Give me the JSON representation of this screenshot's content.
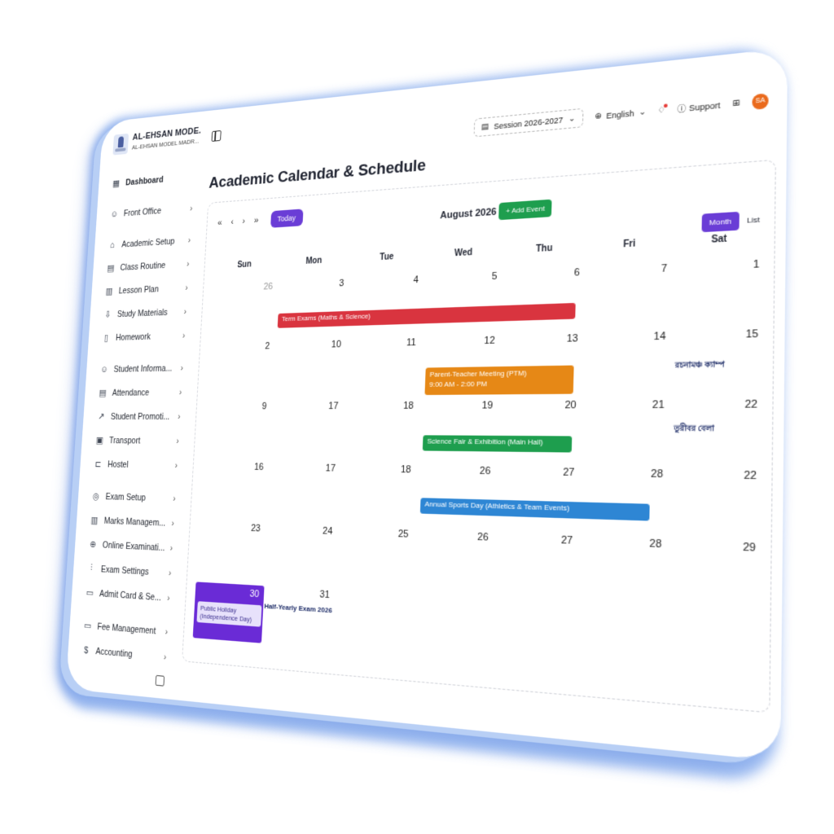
{
  "brand": {
    "name": "AL-EHSAN MODE...",
    "subtitle": "AL-EHSAN MODEL MADR..."
  },
  "sidebar": {
    "groups": [
      [
        {
          "label": "Dashboard",
          "icon": "grid-icon",
          "glyph": "▦",
          "active": true,
          "chevron": false
        }
      ],
      [
        {
          "label": "Front Office",
          "icon": "user-icon",
          "glyph": "☺",
          "chevron": true
        }
      ],
      [
        {
          "label": "Academic Setup",
          "icon": "graduation-cap-icon",
          "glyph": "⌂",
          "chevron": true
        },
        {
          "label": "Class Routine",
          "icon": "calendar-icon",
          "glyph": "▤",
          "chevron": true
        },
        {
          "label": "Lesson Plan",
          "icon": "clipboard-icon",
          "glyph": "▥",
          "chevron": true
        },
        {
          "label": "Study Materials",
          "icon": "download-icon",
          "glyph": "⇩",
          "chevron": true
        },
        {
          "label": "Homework",
          "icon": "book-icon",
          "glyph": "▯",
          "chevron": true
        }
      ],
      [
        {
          "label": "Student Informa...",
          "icon": "user-plus-icon",
          "glyph": "☺",
          "chevron": true
        },
        {
          "label": "Attendance",
          "icon": "calendar-check-icon",
          "glyph": "▤",
          "chevron": true
        },
        {
          "label": "Student Promoti...",
          "icon": "trending-up-icon",
          "glyph": "↗",
          "chevron": true
        },
        {
          "label": "Transport",
          "icon": "bus-icon",
          "glyph": "▣",
          "chevron": true
        },
        {
          "label": "Hostel",
          "icon": "bed-icon",
          "glyph": "⊏",
          "chevron": true
        }
      ],
      [
        {
          "label": "Exam Setup",
          "icon": "award-icon",
          "glyph": "◎",
          "chevron": true
        },
        {
          "label": "Marks Managem...",
          "icon": "file-icon",
          "glyph": "▥",
          "chevron": true
        },
        {
          "label": "Online Examinati...",
          "icon": "globe-icon",
          "glyph": "⊕",
          "chevron": true
        },
        {
          "label": "Exam Settings",
          "icon": "sliders-icon",
          "glyph": "⫶",
          "chevron": true
        },
        {
          "label": "Admit Card & Se...",
          "icon": "id-card-icon",
          "glyph": "▭",
          "chevron": true
        }
      ],
      [
        {
          "label": "Fee Management",
          "icon": "credit-card-icon",
          "glyph": "▭",
          "chevron": true
        },
        {
          "label": "Accounting",
          "icon": "dollar-icon",
          "glyph": "$",
          "chevron": true
        }
      ]
    ]
  },
  "header": {
    "session": "Session 2026-2027",
    "language": "English",
    "support": "Support",
    "avatar": "SA"
  },
  "page": {
    "title": "Academic Calendar & Schedule"
  },
  "calendar": {
    "nav": [
      "«",
      "‹",
      "›",
      "»"
    ],
    "today_label": "Today",
    "month_title": "August 2026",
    "add_event_label": "+ Add Event",
    "view_month": "Month",
    "view_list": "List",
    "days_of_week": [
      "Sun",
      "Mon",
      "Tue",
      "Wed",
      "Thu",
      "Fri",
      "Sat"
    ],
    "weeks": [
      [
        "26",
        "3",
        "4",
        "5",
        "6",
        "7",
        "1"
      ],
      [
        "2",
        "10",
        "11",
        "12",
        "13",
        "14",
        "15"
      ],
      [
        "9",
        "17",
        "18",
        "19",
        "20",
        "21",
        "22"
      ],
      [
        "16",
        "17",
        "18",
        "26",
        "27",
        "28",
        "22"
      ],
      [
        "23",
        "24",
        "25",
        "26",
        "27",
        "28",
        "29"
      ],
      [
        "30",
        "31",
        "",
        "",
        "",
        "",
        ""
      ]
    ],
    "muted_first": true,
    "events": {
      "term_exams": "Term Exams (Maths & Science)",
      "ptm_title": "Parent-Teacher Meeting (PTM)",
      "ptm_time": "9:00 AM - 2:00 PM",
      "science_fair": "Science Fair & Exhibition (Main Hall)",
      "sports_day": "Annual Sports Day (Athletics & Team Events)",
      "bn_label_1": "রচনামঞ্চ ক্যাম্প",
      "bn_label_2": "তুরীবর বেলা",
      "holiday": "Public Holiday (Independence Day)",
      "half_yearly": "Half-Yearly Exam 2026"
    }
  }
}
